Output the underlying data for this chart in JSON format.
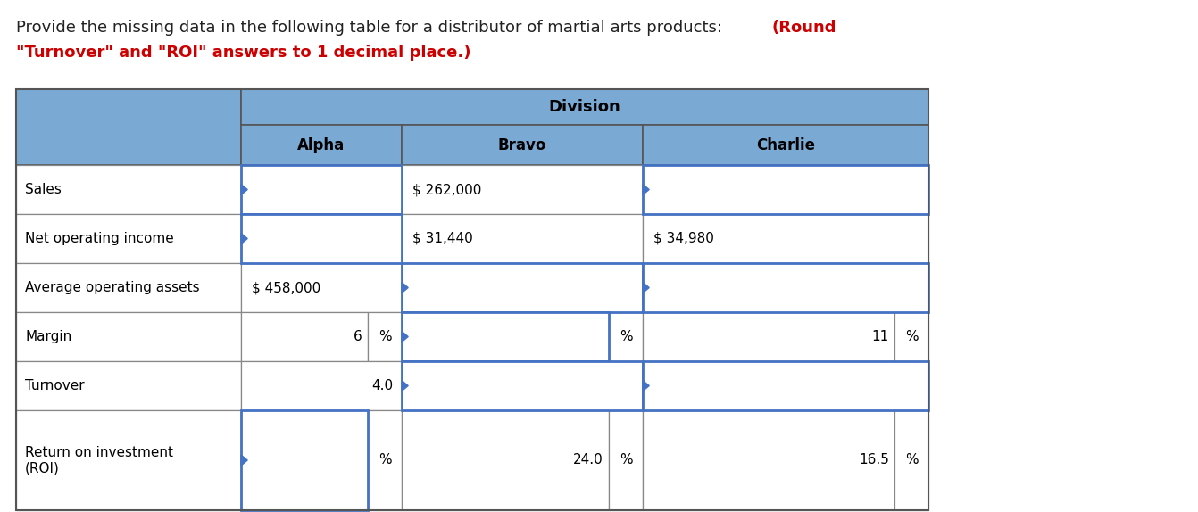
{
  "title_part1": "Provide the missing data in the following table for a distributor of martial arts products: ",
  "title_part2": "(Round\n\"Turnover\" and \"ROI\" answers to 1 decimal place.)",
  "header_bg": "#7aaad4",
  "border_color_dark": "#555555",
  "border_color_light": "#888888",
  "blue_border": "#4472c4",
  "row_labels": [
    "Sales",
    "Net operating income",
    "Average operating assets",
    "Margin",
    "Turnover",
    "Return on investment\n(ROI)"
  ],
  "subcols": [
    "Alpha",
    "Bravo",
    "Charlie"
  ],
  "col_header": "Division",
  "cells": {
    "alpha": [
      {
        "val": "",
        "suf": "",
        "input": true
      },
      {
        "val": "",
        "suf": "",
        "input": true
      },
      {
        "val": "$ 458,000",
        "suf": "",
        "input": false
      },
      {
        "val": "6",
        "suf": "%",
        "input": false
      },
      {
        "val": "4.0",
        "suf": "",
        "input": false
      },
      {
        "val": "",
        "suf": "%",
        "input": true
      }
    ],
    "bravo": [
      {
        "val": "$ 262,000",
        "suf": "",
        "input": false
      },
      {
        "val": "$ 31,440",
        "suf": "",
        "input": false
      },
      {
        "val": "",
        "suf": "",
        "input": true
      },
      {
        "val": "",
        "suf": "%",
        "input": true
      },
      {
        "val": "",
        "suf": "",
        "input": true
      },
      {
        "val": "24.0",
        "suf": "%",
        "input": false
      }
    ],
    "charlie": [
      {
        "val": "",
        "suf": "",
        "input": true
      },
      {
        "val": "$ 34,980",
        "suf": "",
        "input": false
      },
      {
        "val": "",
        "suf": "",
        "input": true
      },
      {
        "val": "11",
        "suf": "%",
        "input": false
      },
      {
        "val": "",
        "suf": "",
        "input": true
      },
      {
        "val": "16.5",
        "suf": "%",
        "input": false
      }
    ]
  }
}
